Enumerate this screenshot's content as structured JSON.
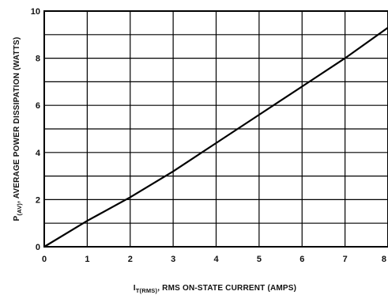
{
  "chart_data": {
    "type": "line",
    "xlabel_symbol": "I",
    "xlabel_subscript": "T(RMS)",
    "xlabel_rest": ", RMS ON-STATE CURRENT (AMPS)",
    "ylabel_symbol": "P",
    "ylabel_subscript": "(AV)",
    "ylabel_rest": ", AVERAGE POWER DISSIPATION (WATTS)",
    "xlim": [
      0,
      8
    ],
    "ylim": [
      0,
      10
    ],
    "x_ticks": [
      "0",
      "1",
      "2",
      "3",
      "4",
      "5",
      "6",
      "7",
      "8"
    ],
    "y_ticks": [
      "0",
      "2",
      "4",
      "6",
      "8",
      "10"
    ],
    "x_minor_step": 1,
    "y_minor_step": 1,
    "grid": true,
    "series": [
      {
        "x": [
          0,
          1,
          2,
          3,
          4,
          5,
          6,
          7,
          8
        ],
        "y": [
          0,
          1.1,
          2.1,
          3.2,
          4.4,
          5.6,
          6.8,
          8.0,
          9.3
        ]
      }
    ],
    "colors": {
      "line": "#000000",
      "grid": "#000000"
    }
  }
}
